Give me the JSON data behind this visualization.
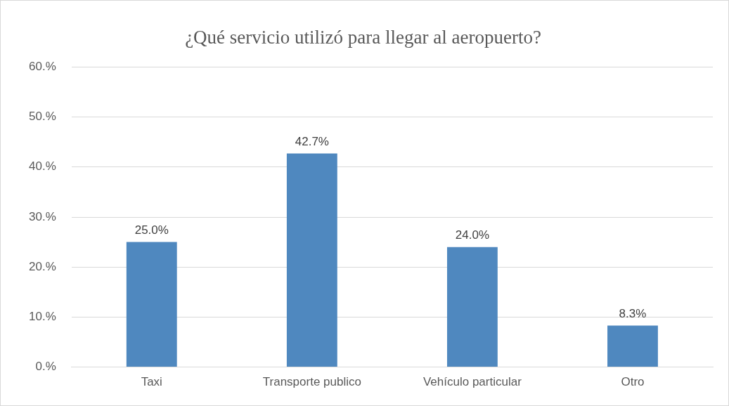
{
  "chart_data": {
    "type": "bar",
    "title": "¿Qué servicio utilizó para llegar al aeropuerto?",
    "categories": [
      "Taxi",
      "Transporte publico",
      "Vehículo particular",
      "Otro"
    ],
    "values": [
      25.0,
      42.7,
      24.0,
      8.3
    ],
    "value_labels": [
      "25.0%",
      "42.7%",
      "24.0%",
      "8.3%"
    ],
    "color": "#4f88bf",
    "ylim": [
      0,
      60
    ],
    "yticks": [
      {
        "value": 0,
        "label": "0.%"
      },
      {
        "value": 10,
        "label": "10.%"
      },
      {
        "value": 20,
        "label": "20.%"
      },
      {
        "value": 30,
        "label": "30.%"
      },
      {
        "value": 40,
        "label": "40.%"
      },
      {
        "value": 50,
        "label": "50.%"
      },
      {
        "value": 60,
        "label": "60.%"
      }
    ],
    "grid": "y",
    "legend": false
  }
}
